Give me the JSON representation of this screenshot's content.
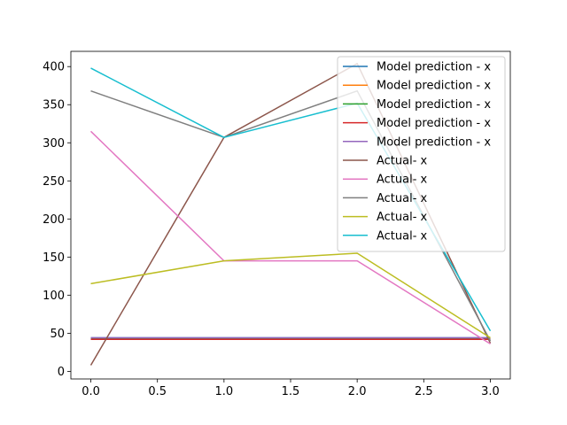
{
  "chart_data": {
    "type": "line",
    "title": "",
    "xlabel": "",
    "ylabel": "",
    "xlim": [
      -0.15,
      3.15
    ],
    "ylim": [
      -10,
      420
    ],
    "xticks": [
      0.0,
      0.5,
      1.0,
      1.5,
      2.0,
      2.5,
      3.0
    ],
    "xtick_labels": [
      "0.0",
      "0.5",
      "1.0",
      "1.5",
      "2.0",
      "2.5",
      "3.0"
    ],
    "yticks": [
      0,
      50,
      100,
      150,
      200,
      250,
      300,
      350,
      400
    ],
    "ytick_labels": [
      "0",
      "50",
      "100",
      "150",
      "200",
      "250",
      "300",
      "350",
      "400"
    ],
    "grid": false,
    "legend_position": "top-right",
    "x": [
      0,
      1,
      2,
      3
    ],
    "series": [
      {
        "name": "Model prediction - x",
        "color": "#1f77b4",
        "values": [
          44,
          44,
          44,
          44
        ]
      },
      {
        "name": "Model prediction - x",
        "color": "#ff7f0e",
        "values": [
          43,
          43,
          43,
          43
        ]
      },
      {
        "name": "Model prediction - x",
        "color": "#2ca02c",
        "values": [
          43,
          43,
          43,
          43
        ]
      },
      {
        "name": "Model prediction - x",
        "color": "#d62728",
        "values": [
          42,
          42,
          42,
          42
        ]
      },
      {
        "name": "Model prediction - x",
        "color": "#9467bd",
        "values": [
          44,
          44,
          44,
          44
        ]
      },
      {
        "name": "Actual- x",
        "color": "#8c564b",
        "values": [
          8,
          307,
          404,
          37
        ]
      },
      {
        "name": "Actual- x",
        "color": "#e377c2",
        "values": [
          315,
          145,
          145,
          36
        ]
      },
      {
        "name": "Actual- x",
        "color": "#7f7f7f",
        "values": [
          368,
          307,
          368,
          40
        ]
      },
      {
        "name": "Actual- x",
        "color": "#bcbd22",
        "values": [
          115,
          145,
          155,
          44
        ]
      },
      {
        "name": "Actual- x",
        "color": "#17becf",
        "values": [
          398,
          307,
          352,
          53
        ]
      }
    ]
  }
}
